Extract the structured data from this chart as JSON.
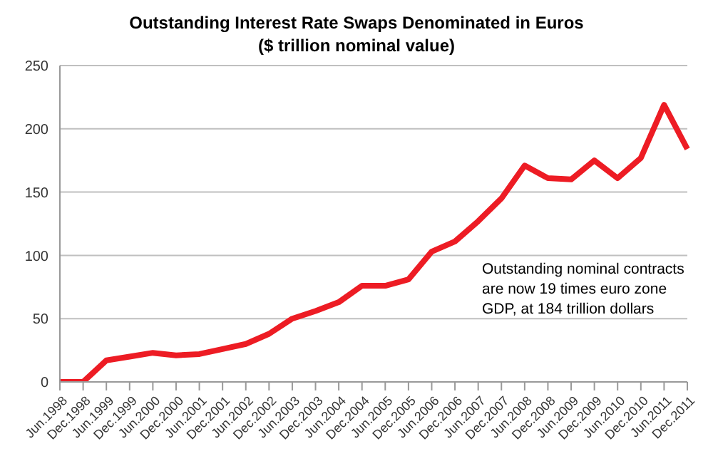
{
  "chart_data": {
    "type": "line",
    "title": "Outstanding Interest Rate Swaps Denominated in Euros",
    "subtitle": "($ trillion nominal value)",
    "categories": [
      "Jun.1998",
      "Dec.1998",
      "Jun.1999",
      "Dec.1999",
      "Jun.2000",
      "Dec.2000",
      "Jun.2001",
      "Dec.2001",
      "Jun.2002",
      "Dec.2002",
      "Jun.2003",
      "Dec.2003",
      "Jun.2004",
      "Dec.2004",
      "Jun.2005",
      "Dec.2005",
      "Jun.2006",
      "Dec.2006",
      "Jun.2007",
      "Dec.2007",
      "Jun.2008",
      "Dec.2008",
      "Jun.2009",
      "Dec.2009",
      "Jun.2010",
      "Dec.2010",
      "Jun.2011",
      "Dec.2011"
    ],
    "series": [
      {
        "color": "#ed1c24",
        "values": [
          0,
          0,
          17,
          20,
          23,
          21,
          22,
          26,
          30,
          38,
          50,
          56,
          63,
          76,
          76,
          81,
          103,
          111,
          127,
          145,
          171,
          161,
          160,
          175,
          161,
          177,
          219,
          184
        ]
      }
    ],
    "ylim": [
      0,
      250
    ],
    "yticks": [
      0,
      50,
      100,
      150,
      200,
      250
    ],
    "grid": "y",
    "legend": false,
    "marker": "none",
    "line_style": "solid",
    "annotations": [
      "Outstanding nominal contracts are now 19 times euro zone GDP, at 184 trillion dollars"
    ]
  }
}
